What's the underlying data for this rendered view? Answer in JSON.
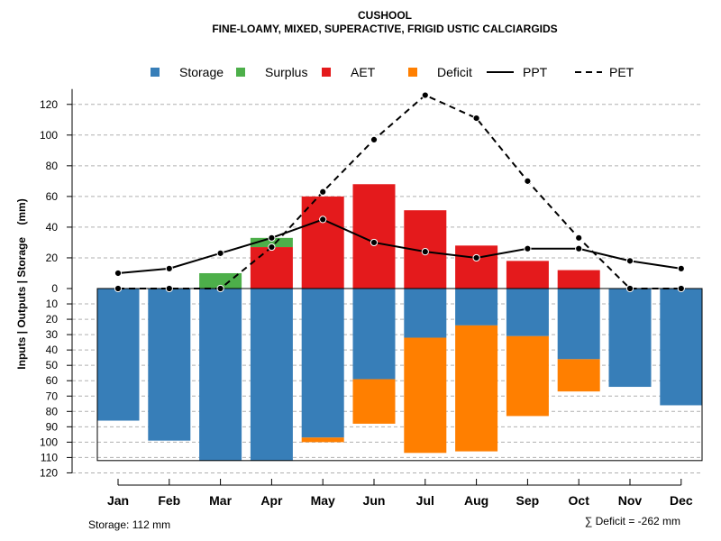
{
  "chart_data": {
    "type": "bar",
    "title": "CUSHOOL",
    "subtitle": "FINE-LOAMY, MIXED, SUPERACTIVE, FRIGID USTIC CALCIARGIDS",
    "ylabel": "Inputs | Outputs | Storage    (mm)",
    "categories": [
      "Jan",
      "Feb",
      "Mar",
      "Apr",
      "May",
      "Jun",
      "Jul",
      "Aug",
      "Sep",
      "Oct",
      "Nov",
      "Dec"
    ],
    "ylim_top": [
      0,
      130
    ],
    "ylim_bottom": [
      0,
      120
    ],
    "yticks_top": [
      0,
      20,
      40,
      60,
      80,
      100,
      120
    ],
    "yticks_bottom": [
      10,
      20,
      30,
      40,
      50,
      60,
      70,
      80,
      90,
      100,
      110,
      120
    ],
    "storage_capacity": 112,
    "series": [
      {
        "name": "Storage",
        "color": "#377eb8",
        "values": [
          86,
          99,
          112,
          112,
          97,
          59,
          32,
          24,
          31,
          46,
          64,
          76
        ]
      },
      {
        "name": "Surplus",
        "color": "#4daf4a",
        "values": [
          0,
          0,
          10,
          6,
          0,
          0,
          0,
          0,
          0,
          0,
          0,
          0
        ]
      },
      {
        "name": "AET",
        "color": "#e41a1c",
        "values": [
          0,
          0,
          0,
          27,
          60,
          68,
          51,
          28,
          18,
          12,
          0,
          0
        ]
      },
      {
        "name": "Deficit",
        "color": "#ff7f00",
        "values": [
          0,
          0,
          0,
          0,
          3,
          29,
          75,
          82,
          52,
          21,
          0,
          0
        ]
      },
      {
        "name": "PPT",
        "color": "#000000",
        "style": "solid",
        "values": [
          10,
          13,
          23,
          33,
          45,
          30,
          24,
          20,
          26,
          26,
          18,
          13
        ]
      },
      {
        "name": "PET",
        "color": "#000000",
        "style": "dashed",
        "values": [
          0,
          0,
          0,
          27,
          63,
          97,
          126,
          111,
          70,
          33,
          0,
          0
        ]
      }
    ],
    "legend": [
      "Storage",
      "Surplus",
      "AET",
      "Deficit",
      "PPT",
      "PET"
    ],
    "legend_position": "top",
    "grid": true,
    "footer_left": "Storage: 112 mm",
    "footer_right": "∑ Deficit = -262 mm"
  }
}
